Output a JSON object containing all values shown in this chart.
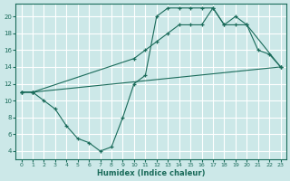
{
  "xlabel": "Humidex (Indice chaleur)",
  "bg_color": "#cce8e8",
  "grid_color": "#ffffff",
  "line_color": "#1a6b5a",
  "xlim": [
    -0.5,
    23.5
  ],
  "ylim": [
    3,
    21.5
  ],
  "xticks": [
    0,
    1,
    2,
    3,
    4,
    5,
    6,
    7,
    8,
    9,
    10,
    11,
    12,
    13,
    14,
    15,
    16,
    17,
    18,
    19,
    20,
    21,
    22,
    23
  ],
  "yticks": [
    4,
    6,
    8,
    10,
    12,
    14,
    16,
    18,
    20
  ],
  "series1_x": [
    0,
    1,
    2,
    3,
    4,
    5,
    6,
    7,
    8,
    9,
    10,
    11,
    12,
    13,
    14,
    15,
    16,
    17,
    18,
    19,
    20,
    23
  ],
  "series1_y": [
    11,
    11,
    10,
    9,
    7,
    5.5,
    5,
    4,
    4.5,
    8,
    12,
    13,
    20,
    21,
    21,
    21,
    21,
    21,
    19,
    20,
    19,
    14
  ],
  "series2_x": [
    0,
    1,
    23
  ],
  "series2_y": [
    11,
    11,
    14
  ],
  "series3_x": [
    0,
    1,
    10,
    11,
    12,
    13,
    14,
    15,
    16,
    17,
    18,
    19,
    20,
    21,
    22,
    23
  ],
  "series3_y": [
    11,
    11,
    15,
    16,
    17,
    18,
    19,
    19,
    19,
    21,
    19,
    19,
    19,
    16,
    15.5,
    14
  ]
}
